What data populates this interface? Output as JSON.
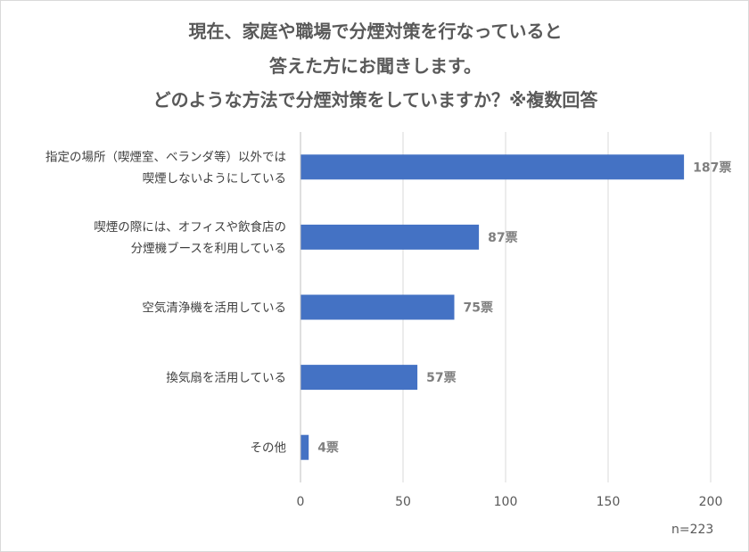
{
  "chart_data": {
    "type": "bar",
    "orientation": "horizontal",
    "title_lines": [
      "現在、家庭や職場で分煙対策を行なっていると",
      "答えた方にお聞きします。",
      "どのような方法で分煙対策をしていますか？※複数回答"
    ],
    "categories": [
      [
        "指定の場所（喫煙室、ベランダ等）以外では",
        "喫煙しないようにしている"
      ],
      [
        "喫煙の際には、オフィスや飲食店の",
        "分煙機ブースを利用している"
      ],
      [
        "空気清浄機を活用している"
      ],
      [
        "換気扇を活用している"
      ],
      [
        "その他"
      ]
    ],
    "values": [
      187,
      87,
      75,
      57,
      4
    ],
    "data_labels": [
      "187票",
      "87票",
      "75票",
      "57票",
      "4票"
    ],
    "x_ticks": [
      "0",
      "50",
      "100",
      "150",
      "200"
    ],
    "xlim": [
      0,
      200
    ],
    "grid": true,
    "bar_color": "#4472c4",
    "note": "n=223"
  }
}
